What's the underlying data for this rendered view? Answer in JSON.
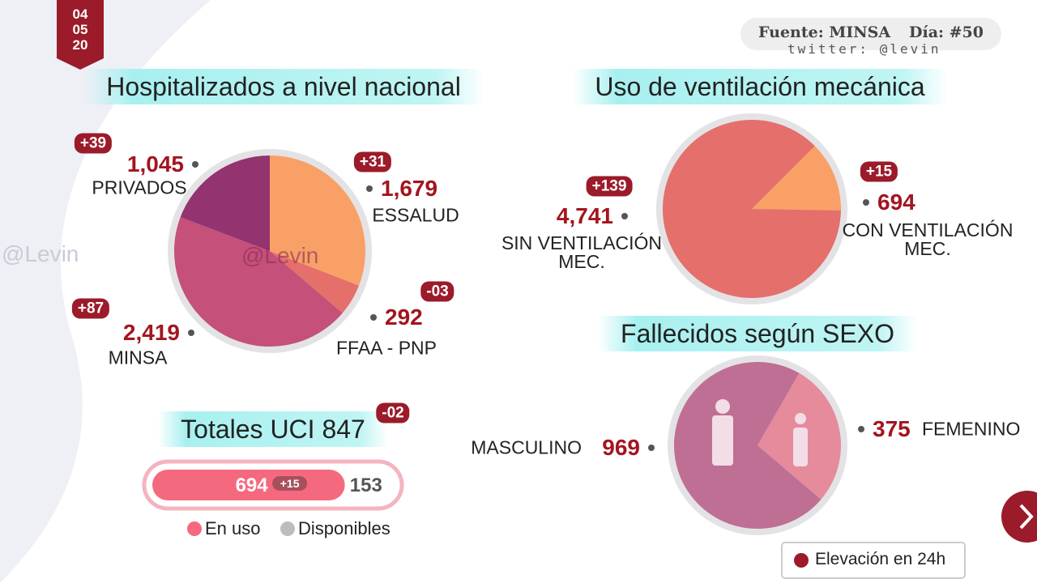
{
  "date": [
    "04",
    "05",
    "20"
  ],
  "source": "Fuente: MINSA",
  "day": "Día: #50",
  "twitter": "twitter: @levin",
  "watermark": "@Levin",
  "footer_legend": "Elevación en  24h",
  "chart_data": [
    {
      "type": "pie",
      "title": "Hospitalizados a nivel nacional",
      "categories": [
        "ESSALUD",
        "FFAA - PNP",
        "MINSA",
        "PRIVADOS"
      ],
      "values": [
        1679,
        292,
        2419,
        1045
      ],
      "value_labels": [
        "1,679",
        "292",
        "2,419",
        "1,045"
      ],
      "changes": [
        "+31",
        "-03",
        "+87",
        "+39"
      ],
      "colors": [
        "#f9a066",
        "#e56f6b",
        "#c5507a",
        "#93336f"
      ]
    },
    {
      "type": "pie",
      "title": "Uso de ventilación mecánica",
      "categories": [
        "CON VENTILACIÓN MEC.",
        "SIN VENTILACIÓN MEC."
      ],
      "values": [
        694,
        4741
      ],
      "value_labels": [
        "694",
        "4,741"
      ],
      "changes": [
        "+15",
        "+139"
      ],
      "colors": [
        "#f9a066",
        "#e56f6b"
      ]
    },
    {
      "type": "pie",
      "title": "Fallecidos según SEXO",
      "categories": [
        "FEMENINO",
        "MASCULINO"
      ],
      "values": [
        375,
        969
      ],
      "colors": [
        "#e58b9c",
        "#bf6f93"
      ]
    },
    {
      "type": "bar",
      "title": "Totales UCI 847",
      "change": "-02",
      "series": [
        {
          "name": "En uso",
          "color": "#f5697f",
          "values": [
            694
          ],
          "changes": [
            "+15"
          ]
        },
        {
          "name": "Disponibles",
          "color": "#bdbdbd",
          "values": [
            153
          ]
        }
      ]
    }
  ]
}
